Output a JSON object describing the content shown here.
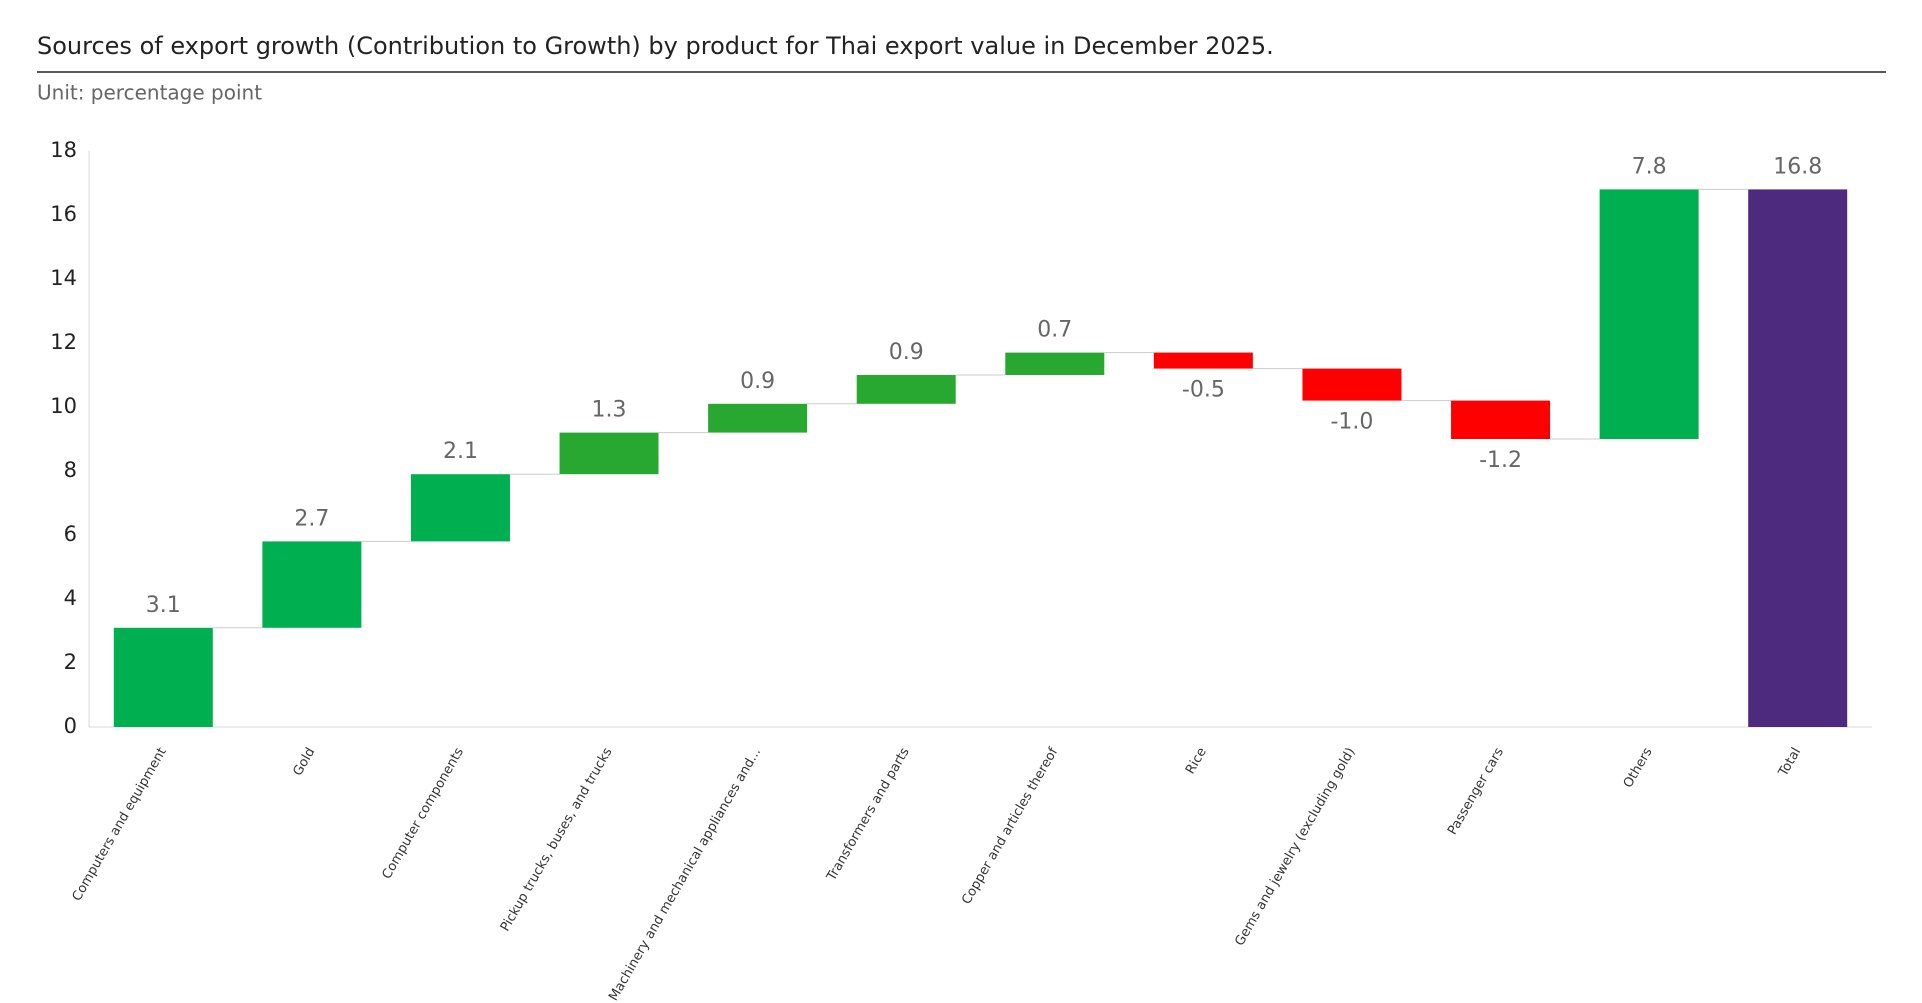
{
  "chart_data": {
    "type": "waterfall",
    "title": "Sources of export growth (Contribution to Growth) by product for Thai export value in December 2025.",
    "subtitle": "Unit: percentage point",
    "categories": [
      "Computers and equipment",
      "Gold",
      "Computer components",
      "Pickup trucks, buses, and trucks",
      "Machinery and mechanical appliances and...",
      "Transformers and parts",
      "Copper and articles thereof",
      "Rice",
      "Gems and jewelry (excluding gold)",
      "Passenger cars",
      "Others"
    ],
    "values": [
      3.1,
      2.7,
      2.1,
      1.3,
      0.9,
      0.9,
      0.7,
      -0.5,
      -1.0,
      -1.2,
      7.8
    ],
    "value_labels": [
      "3.1",
      "2.7",
      "2.1",
      "1.3",
      "0.9",
      "0.9",
      "0.7",
      "-0.5",
      "-1.0",
      "-1.2",
      "7.8"
    ],
    "colors": [
      "#00b050",
      "#00b050",
      "#00b050",
      "#28a830",
      "#28a830",
      "#28a830",
      "#28a830",
      "#ff0000",
      "#ff0000",
      "#ff0000",
      "#00b050"
    ],
    "total": {
      "label": "Total",
      "value": 16.8,
      "value_label": "16.8",
      "color": "#4e2a7e"
    },
    "ylim": [
      0,
      18
    ],
    "yticks": [
      0,
      2,
      4,
      6,
      8,
      10,
      12,
      14,
      16,
      18
    ],
    "grid": false
  }
}
